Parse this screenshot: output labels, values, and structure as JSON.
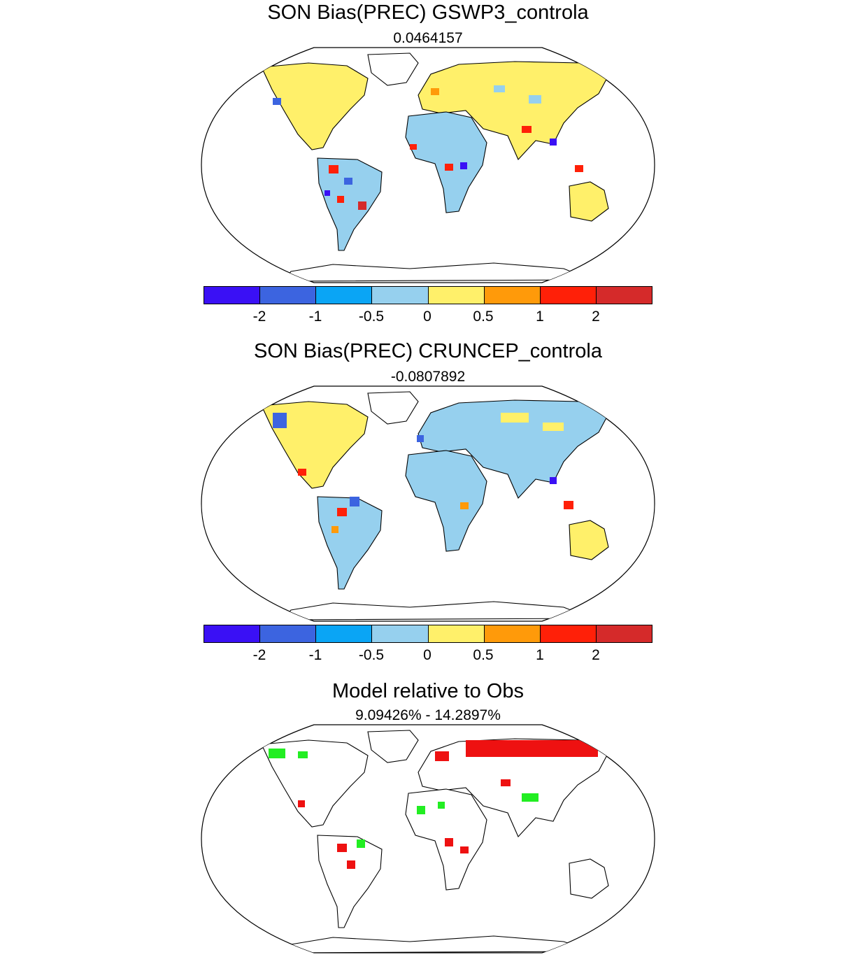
{
  "panels": [
    {
      "title": "SON Bias(PREC) GSWP3_controla",
      "subtitle": "0.0464157"
    },
    {
      "title": "SON Bias(PREC) CRUNCEP_controla",
      "subtitle": "-0.0807892"
    },
    {
      "title": "Model relative to Obs",
      "subtitle": "9.09426% - 14.2897%"
    }
  ],
  "colorbar": {
    "colors": [
      "#3a10f5",
      "#3c64e0",
      "#0aa5f5",
      "#96d0ee",
      "#fff06a",
      "#ff9a0a",
      "#ff2008",
      "#d52a2a"
    ],
    "labels": [
      "-2",
      "-1",
      "-0.5",
      "0",
      "0.5",
      "1",
      "2"
    ]
  },
  "relative_colors": {
    "red": "#ee1111",
    "green": "#22ee22"
  }
}
